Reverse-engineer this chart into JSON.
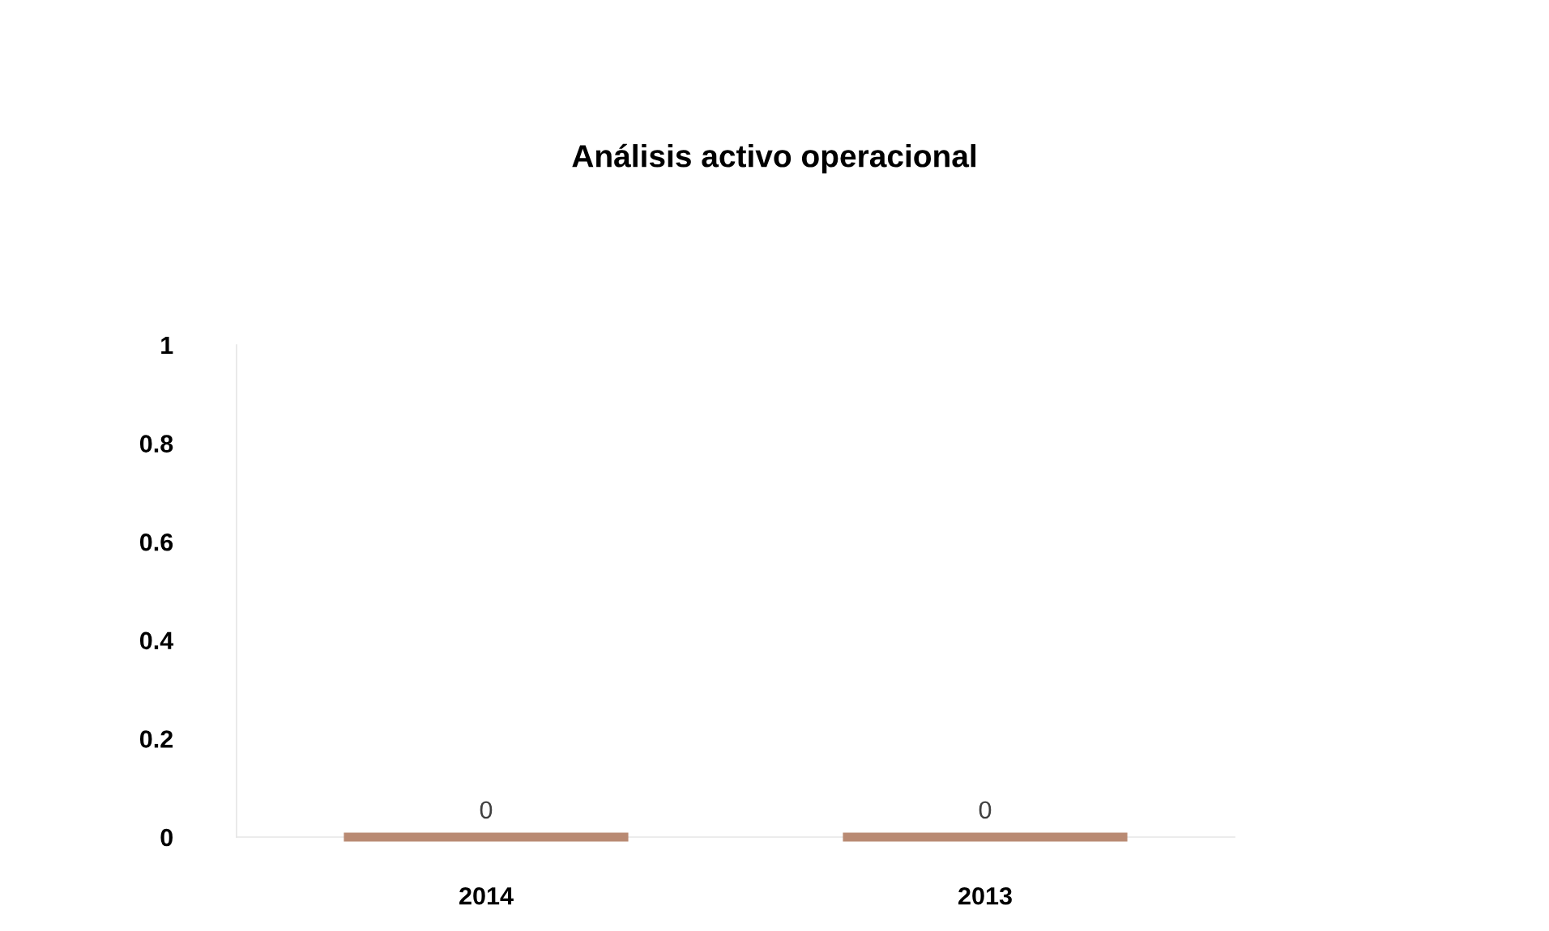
{
  "chart_data": {
    "type": "bar",
    "title": "Análisis activo operacional",
    "categories": [
      "2014",
      "2013"
    ],
    "values": [
      0,
      0
    ],
    "color": "#b98a73",
    "ylim": [
      0,
      1
    ],
    "yticks": [
      0,
      0.2,
      0.4,
      0.6,
      0.8,
      1
    ],
    "grid": false,
    "data_labels": true
  }
}
